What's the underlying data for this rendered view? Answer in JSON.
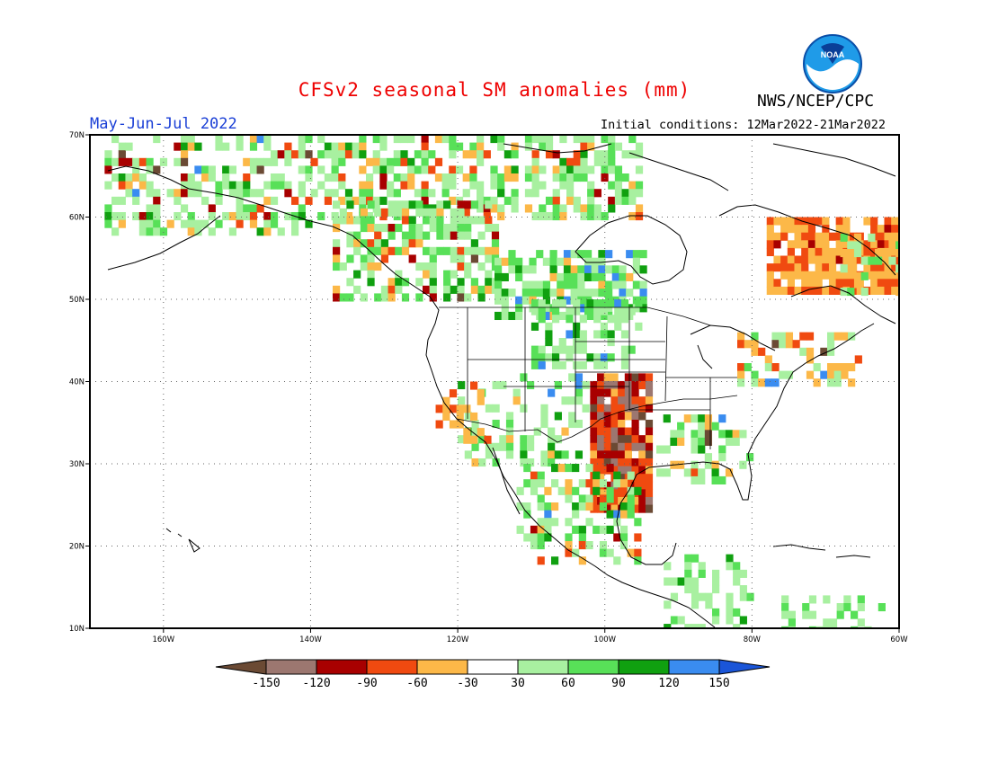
{
  "header": {
    "title": "CFSv2 seasonal SM anomalies (mm)",
    "period": "May-Jun-Jul 2022",
    "org": "NWS/NCEP/CPC",
    "initial_conditions": "Initial conditions: 12Mar2022-21Mar2022",
    "logo_text": "NOAA"
  },
  "colors": {
    "title": "#ee0000",
    "period": "#1a3fd6",
    "below_150": "#6b4a34",
    "m150_m120": "#9c7770",
    "m120_m90": "#a80000",
    "m90_m60": "#f04a10",
    "m60_m30": "#fcb848",
    "m30_30": "#ffffff",
    "p30_60": "#a8f0a0",
    "p60_90": "#58e058",
    "p90_120": "#10a010",
    "p120_150": "#3a8cf0",
    "above_150": "#1a55d8"
  },
  "axes": {
    "lat_labels": [
      "70N",
      "60N",
      "50N",
      "40N",
      "30N",
      "20N",
      "10N"
    ],
    "lon_labels": [
      "160W",
      "140W",
      "120W",
      "100W",
      "80W",
      "60W"
    ]
  },
  "legend": {
    "tick_labels": [
      "-150",
      "-120",
      "-90",
      "-60",
      "-30",
      "30",
      "60",
      "90",
      "120",
      "150"
    ]
  }
}
